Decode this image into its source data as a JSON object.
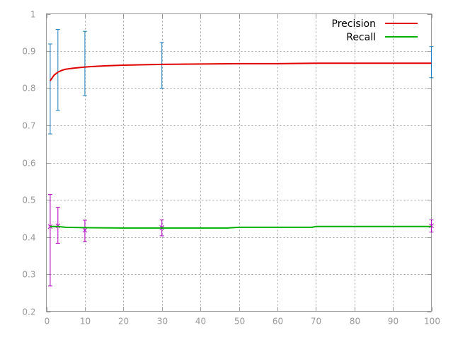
{
  "chart_data": {
    "type": "line",
    "title": "",
    "xlabel": "",
    "ylabel": "",
    "xlim": [
      0,
      100
    ],
    "ylim": [
      0.2,
      1
    ],
    "xticks": [
      0,
      10,
      20,
      30,
      40,
      50,
      60,
      70,
      80,
      90,
      100
    ],
    "yticks": [
      0.2,
      0.3,
      0.4,
      0.5,
      0.6,
      0.7,
      0.8,
      0.9,
      1
    ],
    "ytick_labels": [
      "0.2",
      "0.3",
      "0.4",
      "0.5",
      "0.6",
      "0.7",
      "0.8",
      "0.9",
      "1"
    ],
    "grid": true,
    "legend_position": "top-right",
    "series": [
      {
        "name": "Precision",
        "color": "#e00000",
        "x": [
          1,
          2,
          3,
          4,
          5,
          7,
          10,
          15,
          20,
          30,
          40,
          50,
          60,
          70,
          80,
          90,
          100
        ],
        "y": [
          0.82,
          0.835,
          0.843,
          0.848,
          0.851,
          0.854,
          0.857,
          0.86,
          0.862,
          0.864,
          0.865,
          0.866,
          0.866,
          0.867,
          0.867,
          0.867,
          0.867
        ]
      },
      {
        "name": "Recall",
        "color": "#00b000",
        "x": [
          1,
          3,
          5,
          10,
          20,
          30,
          40,
          47,
          50,
          60,
          69,
          70,
          80,
          90,
          100
        ],
        "y": [
          0.428,
          0.428,
          0.426,
          0.425,
          0.424,
          0.424,
          0.424,
          0.424,
          0.426,
          0.426,
          0.426,
          0.428,
          0.428,
          0.428,
          0.428
        ]
      }
    ],
    "error_bars": [
      {
        "color": "#1f7fbf",
        "marker": "none",
        "points": [
          {
            "x": 1,
            "y": 0.82,
            "low": 0.677,
            "high": 0.919
          },
          {
            "x": 3,
            "y": 0.857,
            "low": 0.74,
            "high": 0.958
          },
          {
            "x": 10,
            "y": 0.866,
            "low": 0.78,
            "high": 0.953
          },
          {
            "x": 30,
            "y": 0.865,
            "low": 0.8,
            "high": 0.923
          },
          {
            "x": 100,
            "y": 0.868,
            "low": 0.828,
            "high": 0.912
          }
        ]
      },
      {
        "color": "#b000c0",
        "marker": "x",
        "points": [
          {
            "x": 1,
            "y": 0.428,
            "low": 0.268,
            "high": 0.514
          },
          {
            "x": 3,
            "y": 0.43,
            "low": 0.383,
            "high": 0.48
          },
          {
            "x": 10,
            "y": 0.418,
            "low": 0.387,
            "high": 0.445
          },
          {
            "x": 30,
            "y": 0.425,
            "low": 0.403,
            "high": 0.446
          },
          {
            "x": 100,
            "y": 0.43,
            "low": 0.413,
            "high": 0.446
          }
        ]
      }
    ]
  }
}
